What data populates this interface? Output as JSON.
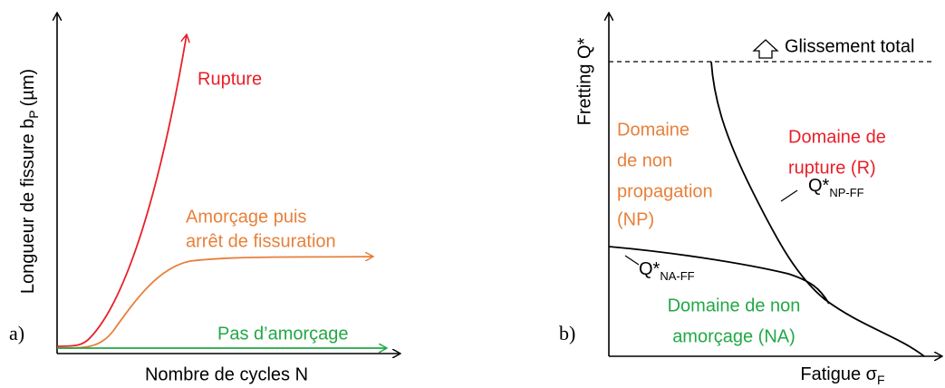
{
  "panel_a": {
    "label": "a)",
    "y_axis": {
      "text": "Longueur de fissure b",
      "sub": "P",
      "unit": "(µm)"
    },
    "x_axis": "Nombre de cycles N",
    "curves": {
      "rupture": "Rupture",
      "arret": [
        "Amorçage puis",
        "arrêt de fissuration"
      ],
      "pas": "Pas d’amorçage"
    }
  },
  "panel_b": {
    "label": "b)",
    "y_axis": "Fretting Q*",
    "x_axis": {
      "text": "Fatigue σ",
      "sub": "F"
    },
    "limit": "Glissement total",
    "regions": {
      "np": [
        "Domaine",
        "de non",
        "propagation",
        "(NP)"
      ],
      "r": [
        "Domaine de",
        "rupture (R)"
      ],
      "na": [
        "Domaine de non",
        "amorçage (NA)"
      ]
    },
    "boundaries": {
      "np_ff": {
        "text": "Q*",
        "sub": "NP-FF"
      },
      "na_ff": {
        "text": "Q*",
        "sub": "NA-FF"
      }
    }
  }
}
